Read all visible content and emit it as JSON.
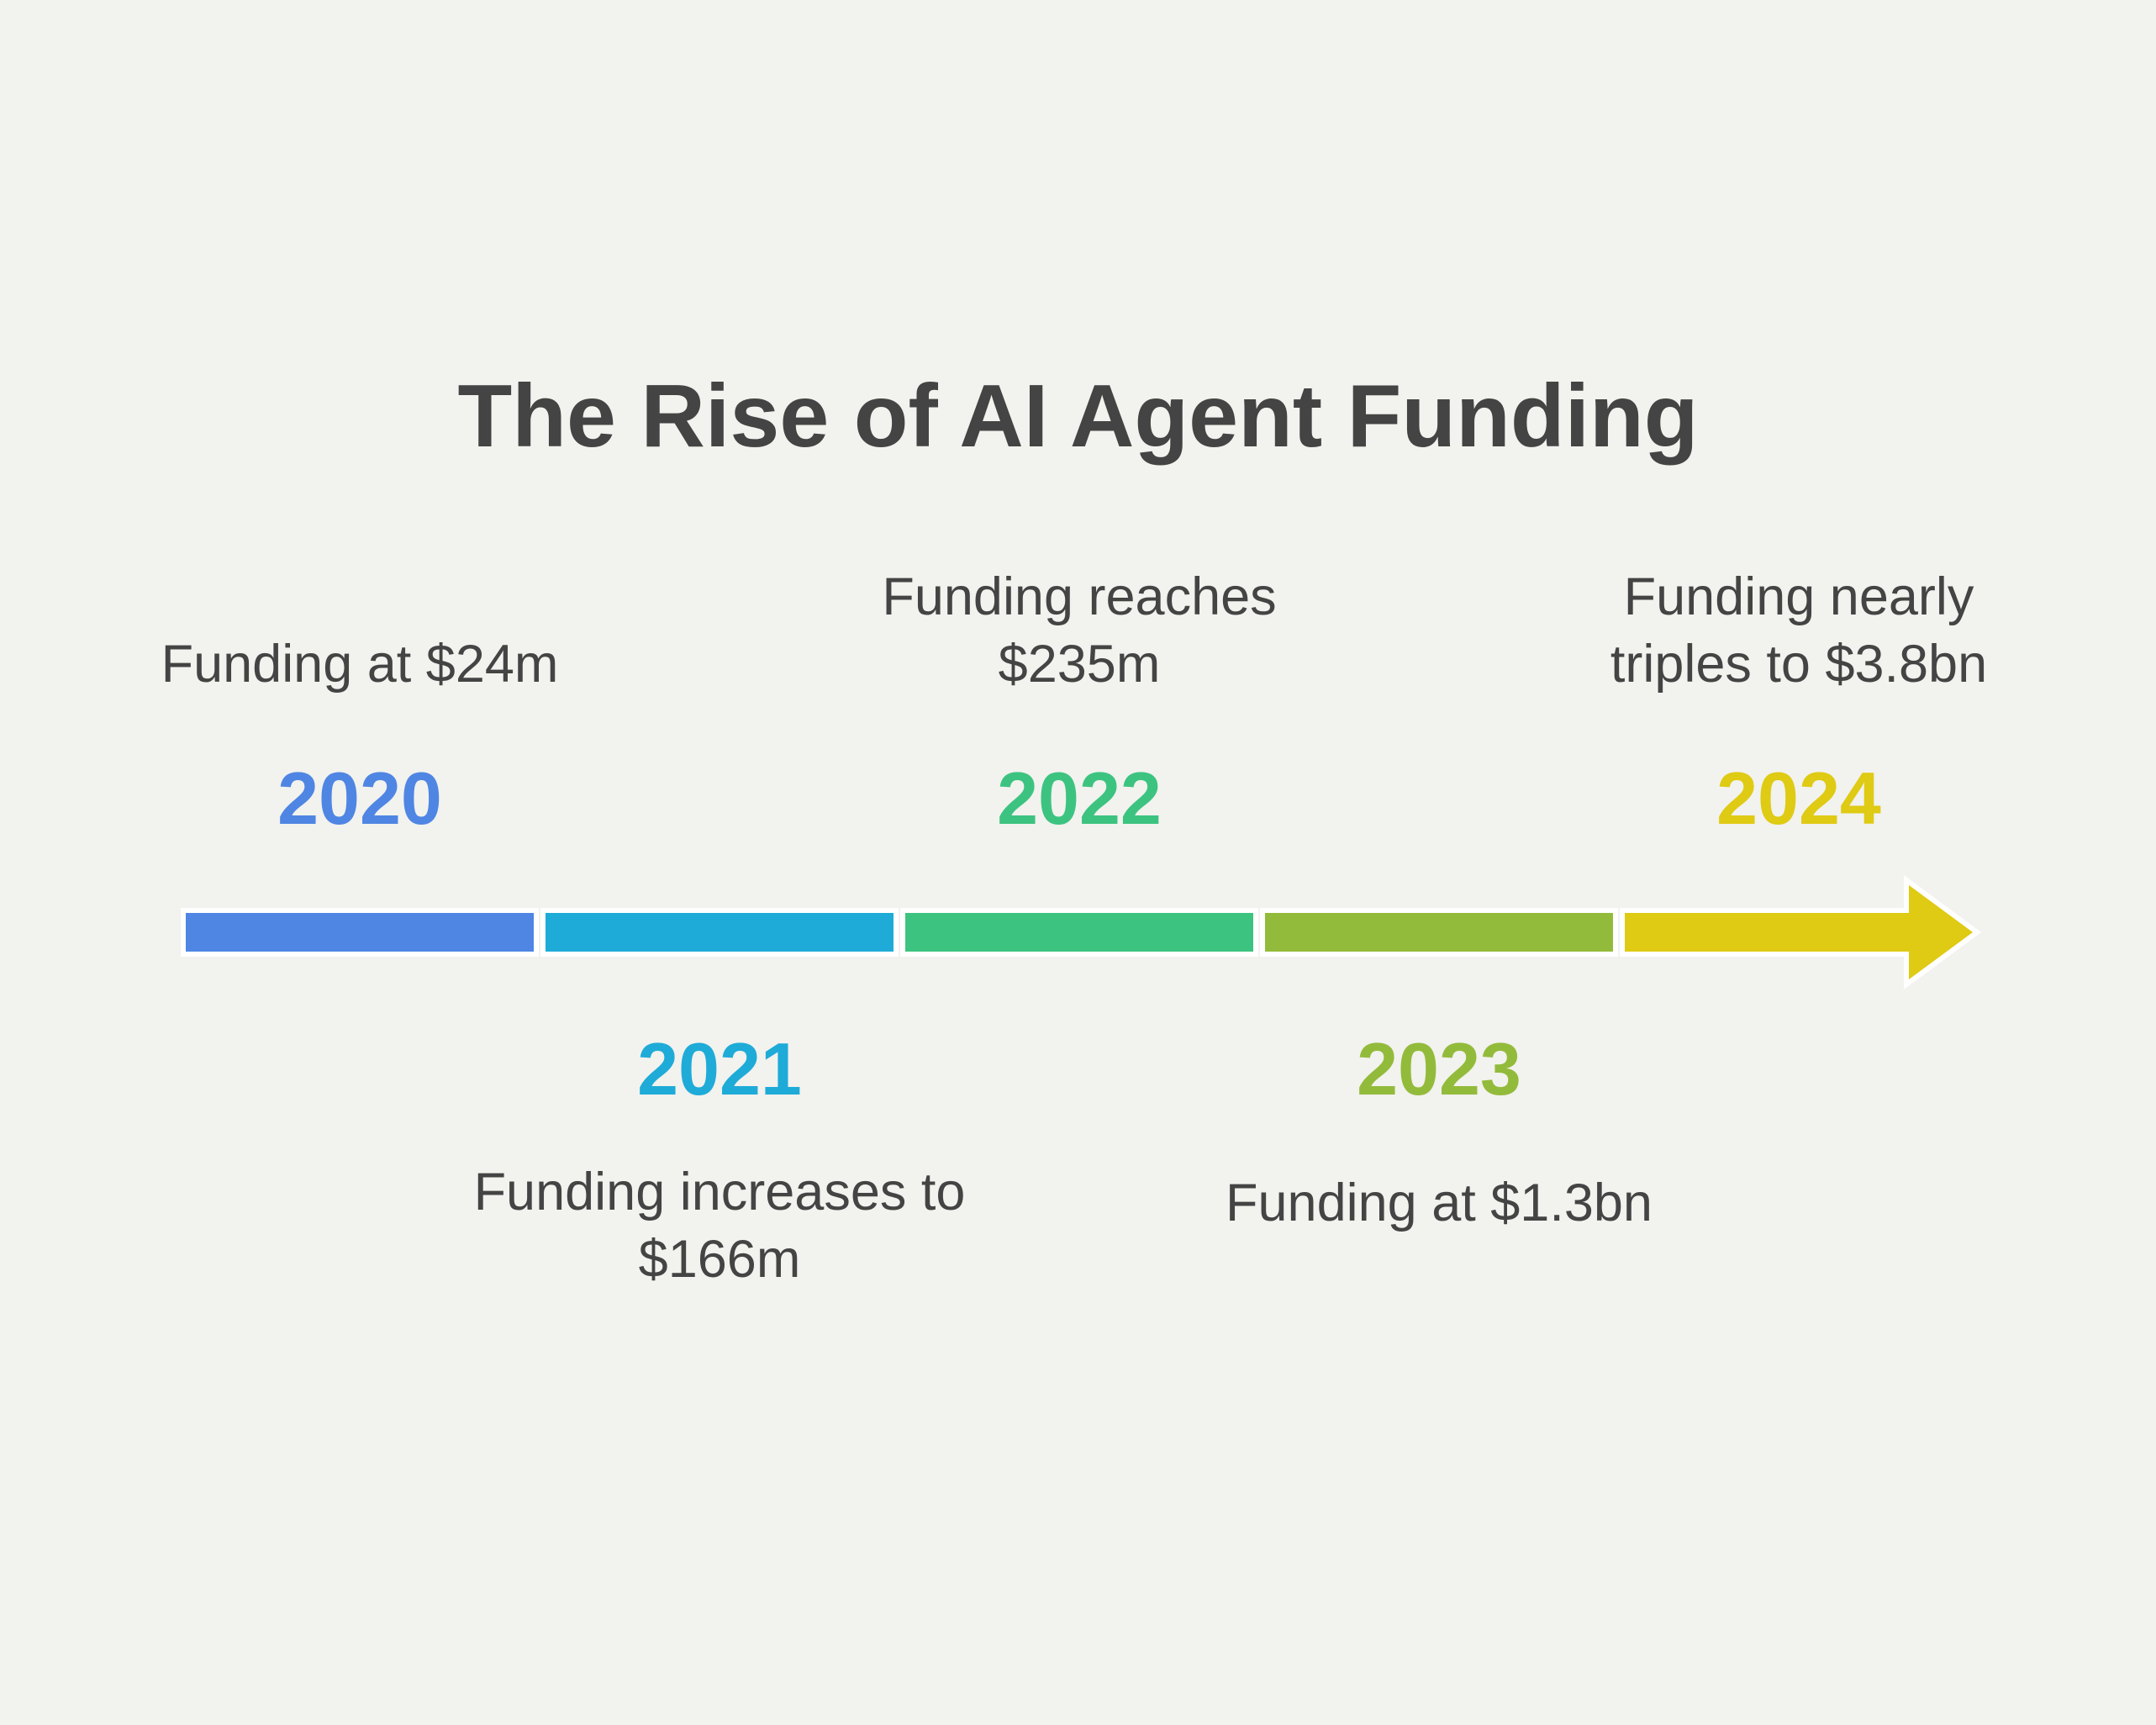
{
  "title": "The Rise of AI Agent Funding",
  "timeline": [
    {
      "year": "2020",
      "text_lines": [
        "Funding at $24m"
      ],
      "color": "#4f86e3",
      "position": "above"
    },
    {
      "year": "2021",
      "text_lines": [
        "Funding increases to",
        "$166m"
      ],
      "color": "#1fabd8",
      "position": "below"
    },
    {
      "year": "2022",
      "text_lines": [
        "Funding reaches",
        "$235m"
      ],
      "color": "#3dc380",
      "position": "above"
    },
    {
      "year": "2023",
      "text_lines": [
        "Funding at $1.3bn"
      ],
      "color": "#93bb3b",
      "position": "below"
    },
    {
      "year": "2024",
      "text_lines": [
        "Funding nearly",
        "triples to $3.8bn"
      ],
      "color": "#dfca14",
      "position": "above"
    }
  ]
}
